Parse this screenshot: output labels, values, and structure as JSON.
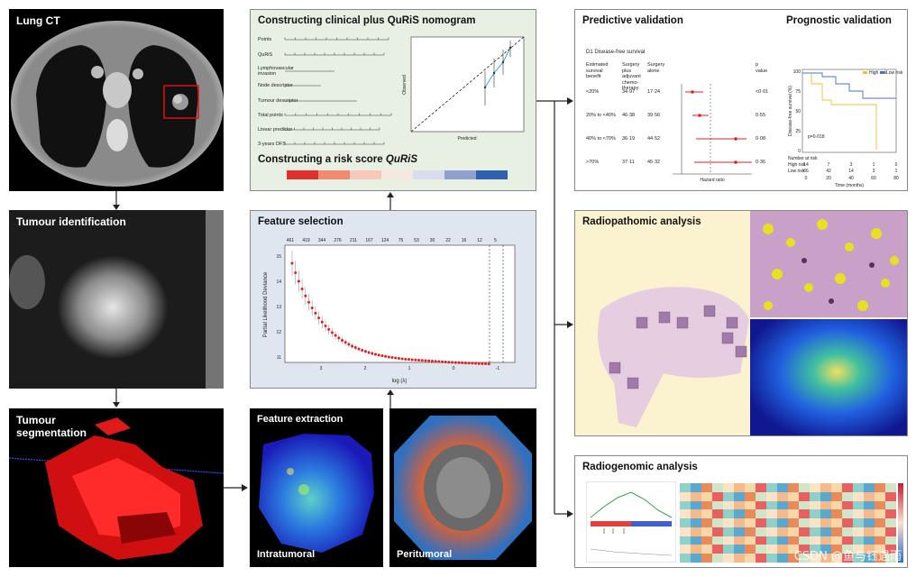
{
  "panels": {
    "lung_ct": {
      "title": "Lung CT"
    },
    "tumour_identification": {
      "title": "Tumour identification"
    },
    "tumour_segmentation": {
      "title": "Tumour segmentation"
    },
    "nomogram": {
      "title": "Constructing clinical plus QuRiS nomogram",
      "rows": [
        "Points",
        "QuRiS",
        "Lymphovascular invasion",
        "Node descriptor",
        "Tumour descriptor",
        "Total points",
        "Linear predictor",
        "3-years DFS"
      ],
      "calib_xlabel": "Predicted",
      "calib_ylabel": "Observed"
    },
    "risk_score": {
      "title_prefix": "Constructing a risk score ",
      "title_em": "QuRiS",
      "colors": [
        "#e03030",
        "#f08a70",
        "#f8c8b8",
        "#f4e8e0",
        "#d8dcec",
        "#8fa0d0",
        "#3060b0"
      ]
    },
    "feature_selection": {
      "title": "Feature selection",
      "top_ticks": [
        "461",
        "419",
        "344",
        "276",
        "211",
        "167",
        "124",
        "75",
        "53",
        "30",
        "22",
        "16",
        "12",
        "5"
      ],
      "ylabel": "Partial Likelihood Deviance",
      "xlabel": "log (λ)",
      "xticks": [
        "3",
        "2",
        "1",
        "0",
        "-1"
      ],
      "yticks": [
        "15",
        "14",
        "13",
        "12",
        "11"
      ]
    },
    "feature_extraction": {
      "title": "Feature extraction",
      "intratumoral": "Intratumoral",
      "peritumoral": "Peritumoral"
    },
    "predictive": {
      "title": "Predictive validation",
      "subtitle": "D1 Disease-free survival",
      "headers": [
        "Estimated survival benefit",
        "Surgery plus adjuvant chemo-therapy",
        "Surgery alone",
        "p value"
      ],
      "rows": [
        {
          "benefit": "<20%",
          "a": "34·97",
          "b": "17·24",
          "p": "<0·01"
        },
        {
          "benefit": "20% to <40%",
          "a": "46·38",
          "b": "39·56",
          "p": "0·55"
        },
        {
          "benefit": "40% to <70%",
          "a": "36·19",
          "b": "44·52",
          "p": "0·08"
        },
        {
          "benefit": ">70%",
          "a": "37·11",
          "b": "45·32",
          "p": "0·36"
        }
      ],
      "xlabel": "Hazard ratio"
    },
    "prognostic": {
      "title": "Prognostic validation",
      "legend": [
        "High risk",
        "Low risk"
      ],
      "ylabel": "Disease-free survival (%)",
      "pvalue": "p=0·018",
      "xlabel": "Time (months)",
      "xticks": [
        "0",
        "20",
        "40",
        "60",
        "80"
      ],
      "yticks": [
        "100",
        "75",
        "50",
        "25",
        "0"
      ],
      "risk_table_title": "Number at risk",
      "risk_rows": [
        {
          "label": "High risk",
          "values": [
            "14",
            "7",
            "3",
            "1",
            "0"
          ]
        },
        {
          "label": "Low risk",
          "values": [
            "66",
            "42",
            "14",
            "3",
            "1"
          ]
        }
      ]
    },
    "radiopathomic": {
      "title": "Radiopathomic analysis"
    },
    "radiogenomic": {
      "title": "Radiogenomic analysis"
    }
  },
  "watermark": "CSDN @鱼与钰遇雨"
}
